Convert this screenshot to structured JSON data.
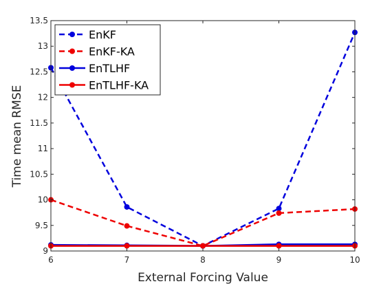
{
  "chart_data": {
    "type": "line",
    "xlabel": "External Forcing Value",
    "ylabel": "Time mean RMSE",
    "xlim": [
      6,
      10
    ],
    "ylim": [
      9,
      13.5
    ],
    "xticks": [
      "6",
      "7",
      "8",
      "9",
      "10"
    ],
    "yticks": [
      "9",
      "9.5",
      "10",
      "10.5",
      "11",
      "11.5",
      "12",
      "12.5",
      "13",
      "13.5"
    ],
    "x": [
      6,
      7,
      8,
      9,
      10
    ],
    "legend_position": "top-left",
    "grid": false,
    "series": [
      {
        "name": "EnKF",
        "color": "#0000dd",
        "style": "dashed",
        "values": [
          12.58,
          9.86,
          9.1,
          9.83,
          13.27
        ]
      },
      {
        "name": "EnKF-KA",
        "color": "#ee0000",
        "style": "dashed",
        "values": [
          10.0,
          9.49,
          9.1,
          9.74,
          9.82
        ]
      },
      {
        "name": "EnTLHF",
        "color": "#0000dd",
        "style": "solid",
        "values": [
          9.12,
          9.11,
          9.1,
          9.13,
          9.13
        ]
      },
      {
        "name": "EnTLHF-KA",
        "color": "#ee0000",
        "style": "solid",
        "values": [
          9.1,
          9.1,
          9.1,
          9.1,
          9.1
        ]
      }
    ]
  }
}
